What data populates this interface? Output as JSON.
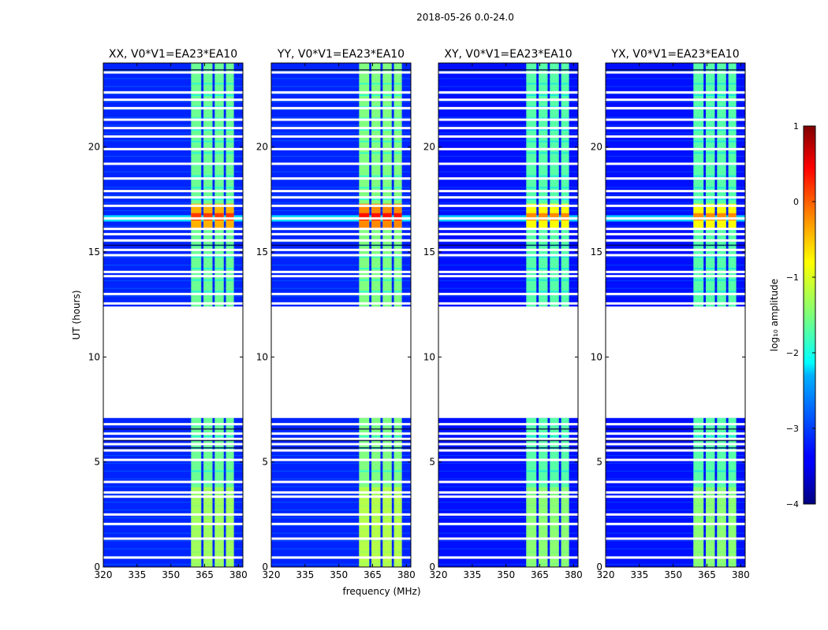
{
  "chart_data": {
    "type": "heatmap",
    "suptitle": "2018-05-26 0.0-24.0",
    "xlabel": "frequency (MHz)",
    "ylabel": "UT (hours)",
    "xlim": [
      320,
      382
    ],
    "ylim": [
      0,
      24
    ],
    "xticks": [
      "320",
      "335",
      "350",
      "365",
      "380"
    ],
    "xtick_values": [
      320,
      335,
      350,
      365,
      380
    ],
    "yticks": [
      "0",
      "5",
      "10",
      "15",
      "20"
    ],
    "ytick_values": [
      0,
      5,
      10,
      15,
      20
    ],
    "colorbar": {
      "label": "log₁₀ amplitude",
      "range": [
        -4,
        1
      ],
      "ticks": [
        "−4",
        "−3",
        "−2",
        "−1",
        "0",
        "1"
      ],
      "tick_values": [
        -4,
        -3,
        -2,
        -1,
        0,
        1
      ],
      "colormap": "jet"
    },
    "no_data_gap_hours": [
      7.1,
      12.4
    ],
    "rfi_band_mhz": [
      359,
      378
    ],
    "rfi_subbands_mhz": [
      [
        359,
        363.5
      ],
      [
        364.5,
        368.5
      ],
      [
        369.5,
        373.5
      ],
      [
        374.5,
        378
      ]
    ],
    "panels": [
      {
        "title": "XX, V0*V1=EA23*EA10",
        "background_log_amp": -3.2,
        "rfi_log_amp": -1.6,
        "peak_log_amp": 0.1
      },
      {
        "title": "YY, V0*V1=EA23*EA10",
        "background_log_amp": -3.2,
        "rfi_log_amp": -1.5,
        "peak_log_amp": 0.3
      },
      {
        "title": "XY, V0*V1=EA23*EA10",
        "background_log_amp": -3.3,
        "rfi_log_amp": -1.7,
        "peak_log_amp": -0.3
      },
      {
        "title": "YX, V0*V1=EA23*EA10",
        "background_log_amp": -3.3,
        "rfi_log_amp": -1.7,
        "peak_log_amp": -0.3
      }
    ]
  }
}
